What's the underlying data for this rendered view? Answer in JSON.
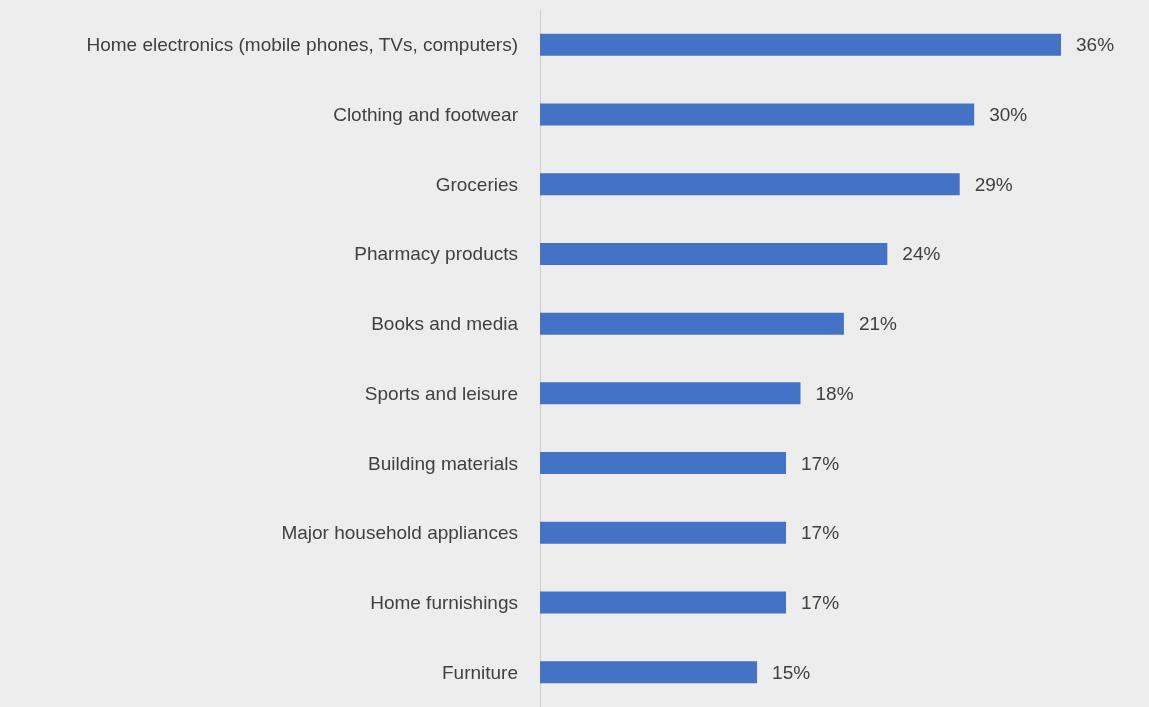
{
  "chart_data": {
    "type": "bar",
    "orientation": "horizontal",
    "categories": [
      "Home electronics (mobile phones, TVs, computers)",
      "Clothing and footwear",
      "Groceries",
      "Pharmacy products",
      "Books and media",
      "Sports and leisure",
      "Building materials",
      "Major household appliances",
      "Home furnishings",
      "Furniture"
    ],
    "values": [
      36,
      30,
      29,
      24,
      21,
      18,
      17,
      17,
      17,
      15
    ],
    "value_labels": [
      "36%",
      "30%",
      "29%",
      "24%",
      "21%",
      "18%",
      "17%",
      "17%",
      "17%",
      "15%"
    ],
    "color": "#4472c4"
  }
}
